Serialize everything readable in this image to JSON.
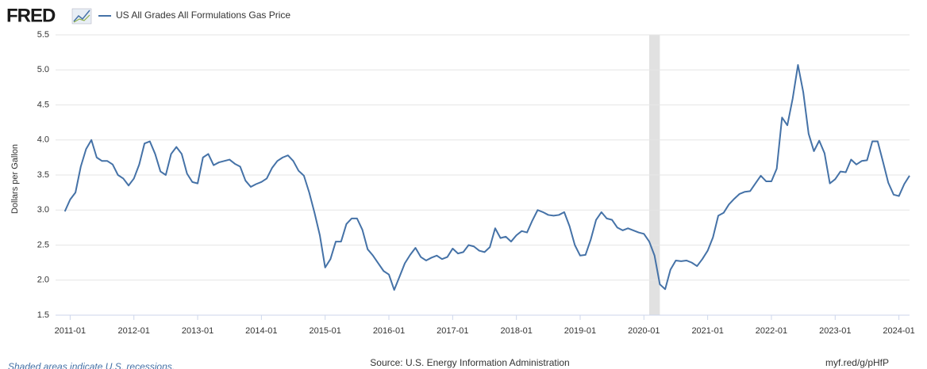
{
  "chart_data": {
    "type": "line",
    "logo": "FRED",
    "title": "US All Grades All Formulations Gas Price",
    "y_label": "Dollars per Gallon",
    "source": "Source: U.S. Energy Information Administration",
    "link": "myf.red/g/pHfP",
    "note": "Shaded areas indicate U.S. recessions.",
    "recessions": [
      {
        "start": "2020-02",
        "end": "2020-04"
      }
    ],
    "x": [
      "2010-12",
      "2011-01",
      "2011-02",
      "2011-03",
      "2011-04",
      "2011-05",
      "2011-06",
      "2011-07",
      "2011-08",
      "2011-09",
      "2011-10",
      "2011-11",
      "2011-12",
      "2012-01",
      "2012-02",
      "2012-03",
      "2012-04",
      "2012-05",
      "2012-06",
      "2012-07",
      "2012-08",
      "2012-09",
      "2012-10",
      "2012-11",
      "2012-12",
      "2013-01",
      "2013-02",
      "2013-03",
      "2013-04",
      "2013-05",
      "2013-06",
      "2013-07",
      "2013-08",
      "2013-09",
      "2013-10",
      "2013-11",
      "2013-12",
      "2014-01",
      "2014-02",
      "2014-03",
      "2014-04",
      "2014-05",
      "2014-06",
      "2014-07",
      "2014-08",
      "2014-09",
      "2014-10",
      "2014-11",
      "2014-12",
      "2015-01",
      "2015-02",
      "2015-03",
      "2015-04",
      "2015-05",
      "2015-06",
      "2015-07",
      "2015-08",
      "2015-09",
      "2015-10",
      "2015-11",
      "2015-12",
      "2016-01",
      "2016-02",
      "2016-03",
      "2016-04",
      "2016-05",
      "2016-06",
      "2016-07",
      "2016-08",
      "2016-09",
      "2016-10",
      "2016-11",
      "2016-12",
      "2017-01",
      "2017-02",
      "2017-03",
      "2017-04",
      "2017-05",
      "2017-06",
      "2017-07",
      "2017-08",
      "2017-09",
      "2017-10",
      "2017-11",
      "2017-12",
      "2018-01",
      "2018-02",
      "2018-03",
      "2018-04",
      "2018-05",
      "2018-06",
      "2018-07",
      "2018-08",
      "2018-09",
      "2018-10",
      "2018-11",
      "2018-12",
      "2019-01",
      "2019-02",
      "2019-03",
      "2019-04",
      "2019-05",
      "2019-06",
      "2019-07",
      "2019-08",
      "2019-09",
      "2019-10",
      "2019-11",
      "2019-12",
      "2020-01",
      "2020-02",
      "2020-03",
      "2020-04",
      "2020-05",
      "2020-06",
      "2020-07",
      "2020-08",
      "2020-09",
      "2020-10",
      "2020-11",
      "2020-12",
      "2021-01",
      "2021-02",
      "2021-03",
      "2021-04",
      "2021-05",
      "2021-06",
      "2021-07",
      "2021-08",
      "2021-09",
      "2021-10",
      "2021-11",
      "2021-12",
      "2022-01",
      "2022-02",
      "2022-03",
      "2022-04",
      "2022-05",
      "2022-06",
      "2022-07",
      "2022-08",
      "2022-09",
      "2022-10",
      "2022-11",
      "2022-12",
      "2023-01",
      "2023-02",
      "2023-03",
      "2023-04",
      "2023-05",
      "2023-06",
      "2023-07",
      "2023-08",
      "2023-09",
      "2023-10",
      "2023-11",
      "2023-12",
      "2024-01",
      "2024-02",
      "2024-03"
    ],
    "series": [
      {
        "name": "US All Grades All Formulations Gas Price",
        "color": "#4572a7",
        "values": [
          2.98,
          3.15,
          3.25,
          3.62,
          3.87,
          4.0,
          3.75,
          3.7,
          3.7,
          3.65,
          3.5,
          3.45,
          3.35,
          3.45,
          3.65,
          3.95,
          3.98,
          3.8,
          3.55,
          3.5,
          3.8,
          3.9,
          3.8,
          3.52,
          3.4,
          3.38,
          3.75,
          3.8,
          3.64,
          3.68,
          3.7,
          3.72,
          3.66,
          3.62,
          3.42,
          3.33,
          3.37,
          3.4,
          3.45,
          3.6,
          3.7,
          3.75,
          3.78,
          3.7,
          3.56,
          3.49,
          3.25,
          2.96,
          2.64,
          2.18,
          2.3,
          2.55,
          2.55,
          2.8,
          2.88,
          2.88,
          2.72,
          2.44,
          2.35,
          2.24,
          2.13,
          2.08,
          1.86,
          2.05,
          2.24,
          2.36,
          2.46,
          2.33,
          2.28,
          2.32,
          2.35,
          2.3,
          2.33,
          2.45,
          2.38,
          2.4,
          2.5,
          2.48,
          2.42,
          2.4,
          2.47,
          2.74,
          2.6,
          2.62,
          2.55,
          2.64,
          2.7,
          2.68,
          2.85,
          3.0,
          2.97,
          2.93,
          2.92,
          2.93,
          2.97,
          2.77,
          2.5,
          2.35,
          2.36,
          2.58,
          2.86,
          2.97,
          2.88,
          2.86,
          2.75,
          2.71,
          2.74,
          2.71,
          2.68,
          2.66,
          2.55,
          2.35,
          1.94,
          1.87,
          2.15,
          2.28,
          2.27,
          2.28,
          2.25,
          2.2,
          2.3,
          2.42,
          2.61,
          2.92,
          2.96,
          3.08,
          3.16,
          3.23,
          3.26,
          3.27,
          3.38,
          3.49,
          3.41,
          3.41,
          3.59,
          4.32,
          4.21,
          4.59,
          5.07,
          4.68,
          4.09,
          3.84,
          3.99,
          3.81,
          3.38,
          3.44,
          3.55,
          3.54,
          3.72,
          3.65,
          3.7,
          3.71,
          3.98,
          3.98,
          3.69,
          3.39,
          3.22,
          3.2,
          3.37,
          3.49
        ]
      }
    ],
    "xlim": [
      "2010-11",
      "2024-03"
    ],
    "xticks": [
      "2011-01",
      "2012-01",
      "2013-01",
      "2014-01",
      "2015-01",
      "2016-01",
      "2017-01",
      "2018-01",
      "2019-01",
      "2020-01",
      "2021-01",
      "2022-01",
      "2023-01",
      "2024-01"
    ],
    "ylim": [
      1.5,
      5.5
    ],
    "yticks": [
      1.5,
      {
        "value": 2,
        "label": "2.0"
      },
      2.5,
      {
        "value": 3,
        "label": "3.0"
      },
      3.5,
      {
        "value": 4,
        "label": "4.0"
      },
      4.5,
      {
        "value": 5,
        "label": "5.0"
      },
      5.5
    ],
    "grid": true
  }
}
